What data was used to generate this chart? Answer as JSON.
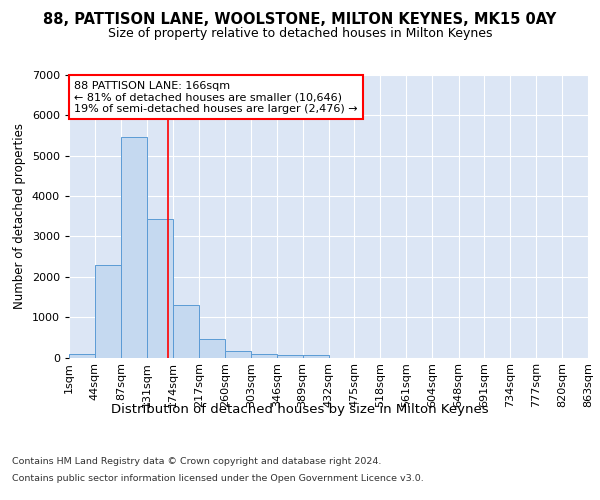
{
  "title": "88, PATTISON LANE, WOOLSTONE, MILTON KEYNES, MK15 0AY",
  "subtitle": "Size of property relative to detached houses in Milton Keynes",
  "xlabel": "Distribution of detached houses by size in Milton Keynes",
  "ylabel": "Number of detached properties",
  "annotation_line1": "88 PATTISON LANE: 166sqm",
  "annotation_line2": "← 81% of detached houses are smaller (10,646)",
  "annotation_line3": "19% of semi-detached houses are larger (2,476) →",
  "footer_line1": "Contains HM Land Registry data © Crown copyright and database right 2024.",
  "footer_line2": "Contains public sector information licensed under the Open Government Licence v3.0.",
  "bar_color": "#c5d9f0",
  "bar_edge_color": "#5b9bd5",
  "bg_color": "#dce6f5",
  "grid_color": "#ffffff",
  "red_line_x": 166,
  "bin_edges": [
    1,
    44,
    87,
    131,
    174,
    217,
    260,
    303,
    346,
    389,
    432,
    475,
    518,
    561,
    604,
    648,
    691,
    734,
    777,
    820,
    863
  ],
  "bar_values": [
    75,
    2280,
    5470,
    3430,
    1290,
    460,
    160,
    85,
    55,
    50,
    0,
    0,
    0,
    0,
    0,
    0,
    0,
    0,
    0,
    0
  ],
  "ylim": [
    0,
    7000
  ],
  "yticks": [
    0,
    1000,
    2000,
    3000,
    4000,
    5000,
    6000,
    7000
  ],
  "title_fontsize": 10.5,
  "subtitle_fontsize": 9.0,
  "ylabel_fontsize": 8.5,
  "xlabel_fontsize": 9.5,
  "tick_fontsize": 8.0,
  "footer_fontsize": 6.8,
  "annot_fontsize": 8.0
}
